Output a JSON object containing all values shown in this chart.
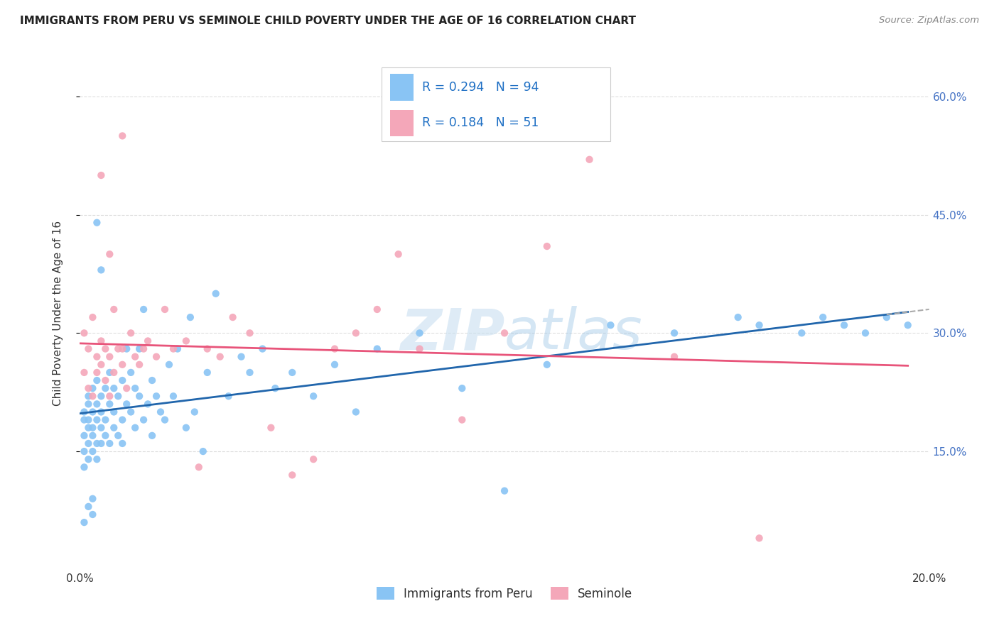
{
  "title": "IMMIGRANTS FROM PERU VS SEMINOLE CHILD POVERTY UNDER THE AGE OF 16 CORRELATION CHART",
  "source": "Source: ZipAtlas.com",
  "ylabel": "Child Poverty Under the Age of 16",
  "xlim": [
    0.0,
    0.2
  ],
  "ylim": [
    0.0,
    0.65
  ],
  "yticks_right": [
    0.15,
    0.3,
    0.45,
    0.6
  ],
  "yticklabels_right": [
    "15.0%",
    "30.0%",
    "45.0%",
    "60.0%"
  ],
  "legend_labels": [
    "Immigrants from Peru",
    "Seminole"
  ],
  "scatter_blue_color": "#89c4f4",
  "scatter_pink_color": "#f4a7b9",
  "line_blue_color": "#2166ac",
  "line_pink_color": "#e8547a",
  "line_dashed_color": "#aaaaaa",
  "watermark_color": "#c8dff0",
  "background_color": "#ffffff",
  "grid_color": "#dddddd",
  "blue_scatter_x": [
    0.001,
    0.001,
    0.001,
    0.001,
    0.001,
    0.002,
    0.002,
    0.002,
    0.002,
    0.002,
    0.002,
    0.003,
    0.003,
    0.003,
    0.003,
    0.003,
    0.004,
    0.004,
    0.004,
    0.004,
    0.004,
    0.005,
    0.005,
    0.005,
    0.005,
    0.006,
    0.006,
    0.006,
    0.007,
    0.007,
    0.007,
    0.008,
    0.008,
    0.008,
    0.009,
    0.009,
    0.01,
    0.01,
    0.01,
    0.011,
    0.011,
    0.012,
    0.012,
    0.013,
    0.013,
    0.014,
    0.014,
    0.015,
    0.015,
    0.016,
    0.017,
    0.017,
    0.018,
    0.019,
    0.02,
    0.021,
    0.022,
    0.023,
    0.025,
    0.026,
    0.027,
    0.029,
    0.03,
    0.032,
    0.035,
    0.038,
    0.04,
    0.043,
    0.046,
    0.05,
    0.055,
    0.06,
    0.065,
    0.07,
    0.08,
    0.09,
    0.1,
    0.11,
    0.125,
    0.14,
    0.155,
    0.16,
    0.17,
    0.175,
    0.18,
    0.185,
    0.19,
    0.195,
    0.001,
    0.002,
    0.003,
    0.003,
    0.004,
    0.005
  ],
  "blue_scatter_y": [
    0.19,
    0.17,
    0.15,
    0.13,
    0.2,
    0.18,
    0.16,
    0.21,
    0.14,
    0.19,
    0.22,
    0.17,
    0.15,
    0.2,
    0.23,
    0.18,
    0.16,
    0.19,
    0.14,
    0.21,
    0.24,
    0.18,
    0.22,
    0.16,
    0.2,
    0.19,
    0.23,
    0.17,
    0.21,
    0.16,
    0.25,
    0.2,
    0.18,
    0.23,
    0.17,
    0.22,
    0.19,
    0.24,
    0.16,
    0.21,
    0.28,
    0.2,
    0.25,
    0.18,
    0.23,
    0.22,
    0.28,
    0.19,
    0.33,
    0.21,
    0.24,
    0.17,
    0.22,
    0.2,
    0.19,
    0.26,
    0.22,
    0.28,
    0.18,
    0.32,
    0.2,
    0.15,
    0.25,
    0.35,
    0.22,
    0.27,
    0.25,
    0.28,
    0.23,
    0.25,
    0.22,
    0.26,
    0.2,
    0.28,
    0.3,
    0.23,
    0.1,
    0.26,
    0.31,
    0.3,
    0.32,
    0.31,
    0.3,
    0.32,
    0.31,
    0.3,
    0.32,
    0.31,
    0.06,
    0.08,
    0.09,
    0.07,
    0.44,
    0.38
  ],
  "pink_scatter_x": [
    0.001,
    0.001,
    0.002,
    0.002,
    0.003,
    0.003,
    0.004,
    0.004,
    0.005,
    0.005,
    0.006,
    0.006,
    0.007,
    0.007,
    0.008,
    0.008,
    0.009,
    0.01,
    0.01,
    0.011,
    0.012,
    0.013,
    0.014,
    0.015,
    0.016,
    0.018,
    0.02,
    0.022,
    0.025,
    0.028,
    0.03,
    0.033,
    0.036,
    0.04,
    0.045,
    0.05,
    0.055,
    0.06,
    0.065,
    0.07,
    0.075,
    0.08,
    0.09,
    0.1,
    0.11,
    0.12,
    0.14,
    0.16,
    0.005,
    0.007,
    0.01
  ],
  "pink_scatter_y": [
    0.25,
    0.3,
    0.23,
    0.28,
    0.22,
    0.32,
    0.27,
    0.25,
    0.26,
    0.29,
    0.24,
    0.28,
    0.27,
    0.22,
    0.25,
    0.33,
    0.28,
    0.26,
    0.28,
    0.23,
    0.3,
    0.27,
    0.26,
    0.28,
    0.29,
    0.27,
    0.33,
    0.28,
    0.29,
    0.13,
    0.28,
    0.27,
    0.32,
    0.3,
    0.18,
    0.12,
    0.14,
    0.28,
    0.3,
    0.33,
    0.4,
    0.28,
    0.19,
    0.3,
    0.41,
    0.52,
    0.27,
    0.04,
    0.5,
    0.4,
    0.55
  ]
}
